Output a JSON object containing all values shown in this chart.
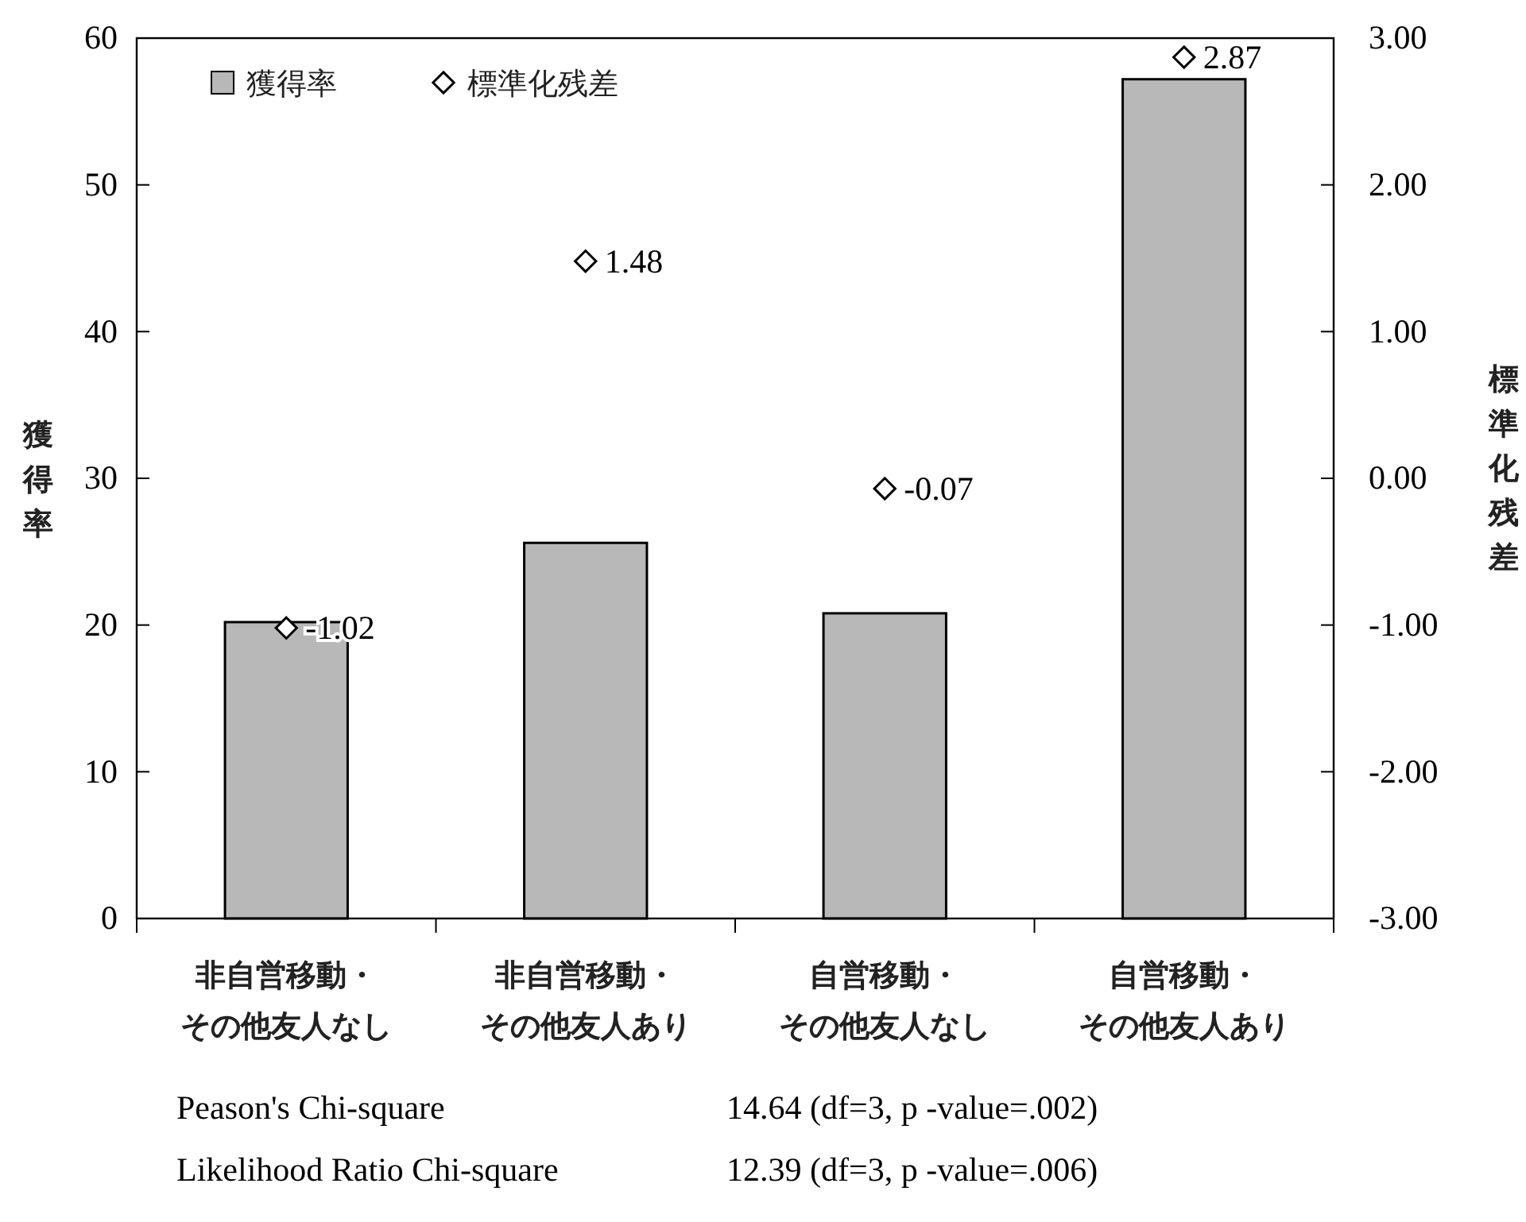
{
  "chart_data": {
    "type": "bar",
    "categories": [
      "非自営移動・その他友人なし",
      "非自営移動・その他友人あり",
      "自営移動・その他友人なし",
      "自営移動・その他友人あり"
    ],
    "series": [
      {
        "name": "獲得率",
        "color": "#b8b8b8",
        "values": [
          20.2,
          25.6,
          20.8,
          57.2
        ]
      },
      {
        "name": "標準化残差",
        "type": "scatter",
        "axis": "y2",
        "marker": "diamond",
        "color": "#000000",
        "values": [
          -1.02,
          1.48,
          -0.07,
          2.87
        ],
        "value_labels": [
          "-1.02",
          "1.48",
          "-0.07",
          "2.87"
        ]
      }
    ],
    "ylabel": "獲得率",
    "y2label": "標準化残差",
    "ylim": [
      0,
      60
    ],
    "yticks": [
      0,
      10,
      20,
      30,
      40,
      50,
      60
    ],
    "y2lim": [
      -3,
      3
    ],
    "y2ticks": [
      {
        "value": -3,
        "label": "-3.00"
      },
      {
        "value": -2,
        "label": "-2.00"
      },
      {
        "value": -1,
        "label": "-1.00"
      },
      {
        "value": 0,
        "label": "0.00"
      },
      {
        "value": 1,
        "label": "1.00"
      },
      {
        "value": 2,
        "label": "2.00"
      },
      {
        "value": 3,
        "label": "3.00"
      }
    ],
    "legend": "top left",
    "grid": false,
    "annotations": [
      "Peason's Chi-square",
      "14.64 (df=3, p -value=.002)",
      "Likelihood Ratio Chi-square",
      "12.39 (df=3, p -value=.006)"
    ]
  }
}
